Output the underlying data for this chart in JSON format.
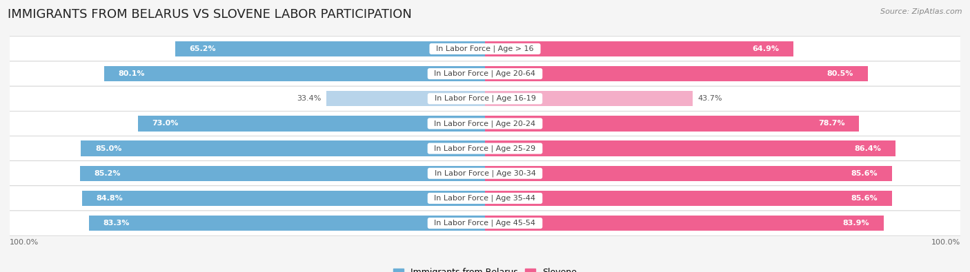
{
  "title": "IMMIGRANTS FROM BELARUS VS SLOVENE LABOR PARTICIPATION",
  "source": "Source: ZipAtlas.com",
  "categories": [
    "In Labor Force | Age > 16",
    "In Labor Force | Age 20-64",
    "In Labor Force | Age 16-19",
    "In Labor Force | Age 20-24",
    "In Labor Force | Age 25-29",
    "In Labor Force | Age 30-34",
    "In Labor Force | Age 35-44",
    "In Labor Force | Age 45-54"
  ],
  "belarus_values": [
    65.2,
    80.1,
    33.4,
    73.0,
    85.0,
    85.2,
    84.8,
    83.3
  ],
  "slovene_values": [
    64.9,
    80.5,
    43.7,
    78.7,
    86.4,
    85.6,
    85.6,
    83.9
  ],
  "belarus_color": "#6baed6",
  "belarus_color_light": "#b8d4ea",
  "slovene_color": "#f06090",
  "slovene_color_light": "#f4aec8",
  "label_belarus": "Immigrants from Belarus",
  "label_slovene": "Slovene",
  "bg_color": "#f5f5f5",
  "row_bg_light": "#ebebeb",
  "row_bg_dark": "#e0e0e0",
  "max_value": 100.0,
  "bar_height": 0.62,
  "title_fontsize": 13,
  "cat_fontsize": 8,
  "value_fontsize": 8,
  "legend_fontsize": 9,
  "axis_label_fontsize": 8
}
